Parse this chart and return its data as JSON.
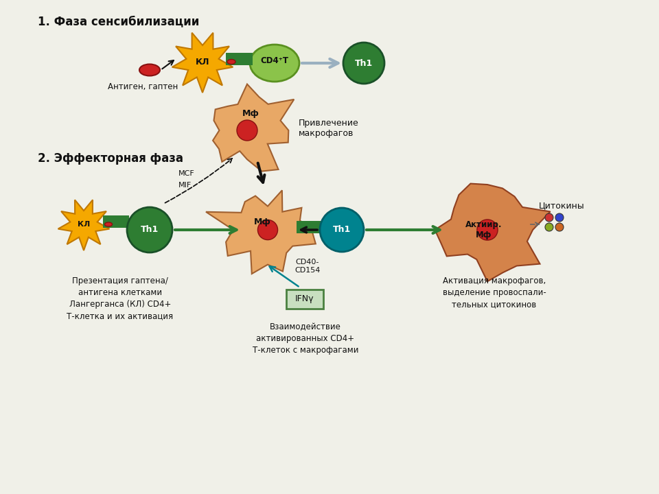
{
  "bg_color": "#f0f0e8",
  "colors": {
    "yellow_star": "#f5a800",
    "yellow_star_edge": "#c07800",
    "green_dark": "#2e7d32",
    "green_light": "#8bc34a",
    "green_light_edge": "#5a9020",
    "red_nucleus": "#cc2222",
    "red_nucleus_edge": "#881111",
    "orange_cell": "#e8a866",
    "orange_cell_edge": "#a06030",
    "orange_cell2": "#d4834a",
    "orange_cell2_edge": "#904020",
    "teal": "#00838f",
    "teal_edge": "#005f68",
    "ifn_box": "#c8dfc0",
    "ifn_border": "#4a8040",
    "black": "#111111",
    "gray_arrow": "#9ab0c0",
    "green_arrow": "#2e7d32"
  },
  "phase1_label": "1. Фаза сенсибилизации",
  "phase2_label": "2. Эффекторная фаза",
  "antigen_label": "Антиген, гаптен",
  "mcf_label": "MCF",
  "mif_label": "MIF",
  "attract_label": "Привлечение\nмакрофагов",
  "cd40_label": "CD40-\nCD154",
  "ifn_label": "IFNγ",
  "cytokines_label": "Цитокины",
  "bottom1_label": "Презентация гаптена/\nантигена клетками\nЛангерганса (КЛ) CD4+\nТ-клетка и их активация",
  "bottom2_label": "Взаимодействие\nактивированных CD4+\nТ-клеток с макрофагами",
  "bottom3_label": "Активация макрофагов,\nвыделение провоспали-\nтельных цитокинов"
}
